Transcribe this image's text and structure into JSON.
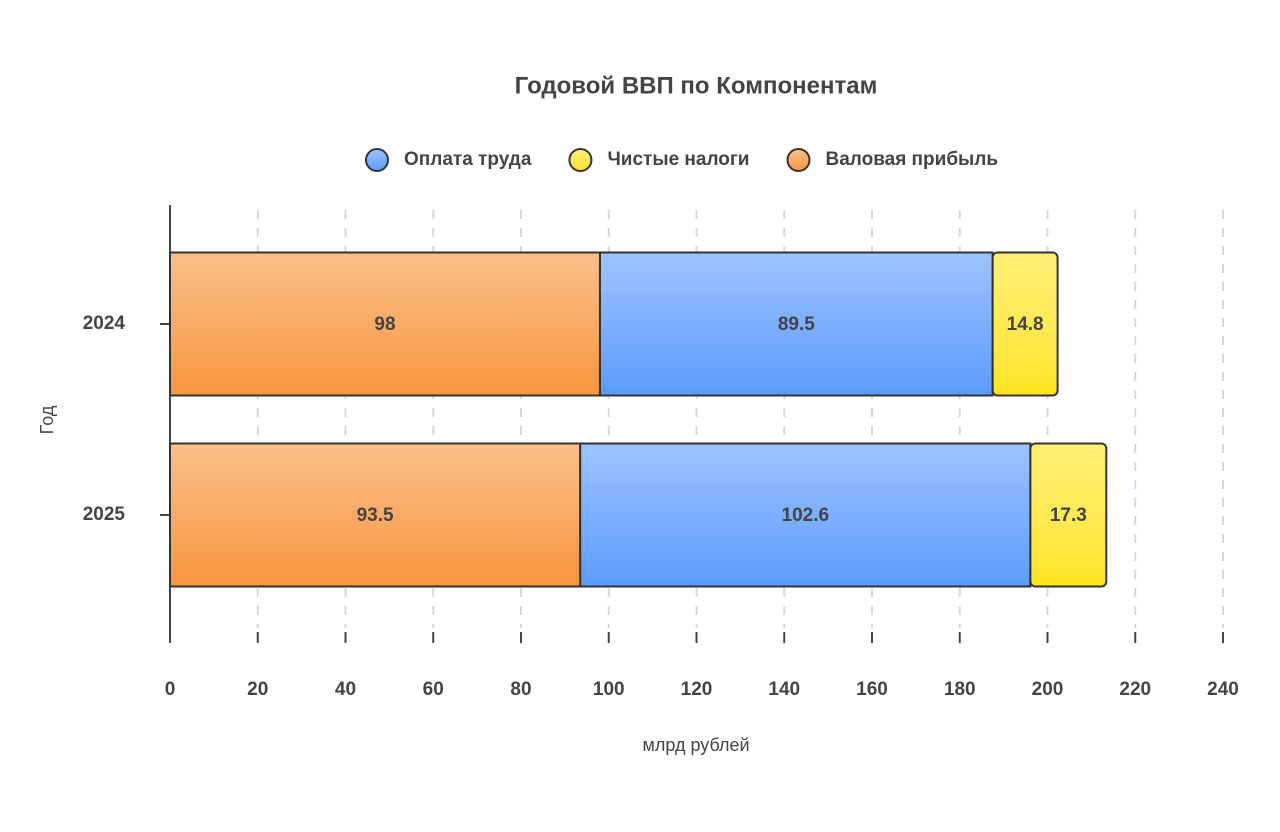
{
  "chart_data": {
    "type": "stacked_bar_horizontal",
    "title": "Годовой ВВП по Компонентам",
    "categories": [
      "2024",
      "2025"
    ],
    "series": [
      {
        "name": "Оплата труда",
        "color": "#5b9bff",
        "values": [
          89.5,
          102.6
        ]
      },
      {
        "name": "Чистые налоги",
        "color": "#ffe41a",
        "values": [
          14.8,
          17.3
        ]
      },
      {
        "name": "Валовая прибыль",
        "color": "#f7953a",
        "values": [
          98,
          93.5
        ]
      }
    ],
    "xlabel": "млрд рублей",
    "ylabel": "Год",
    "xlim": [
      0,
      240
    ],
    "xticks": [
      0,
      20,
      40,
      60,
      80,
      100,
      120,
      140,
      160,
      180,
      200,
      220,
      240
    ],
    "grid": true,
    "legend": "top"
  }
}
